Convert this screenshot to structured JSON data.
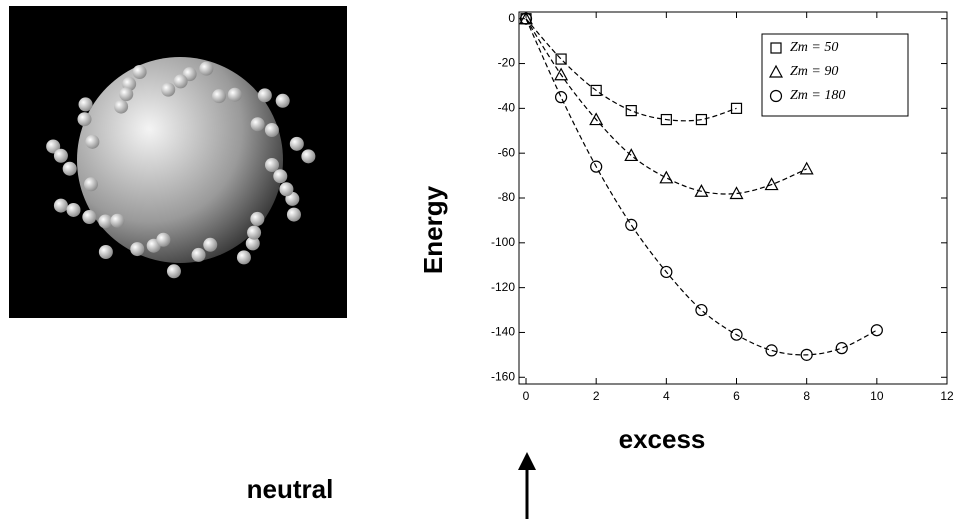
{
  "chart_data": {
    "type": "line",
    "x_label": "excess",
    "y_label": "Energy",
    "annotation": "neutral",
    "xlim": [
      -0.2,
      12
    ],
    "xticks": [
      0,
      2,
      4,
      6,
      8,
      10,
      12
    ],
    "ylim": [
      -163,
      3
    ],
    "yticks": [
      0,
      -20,
      -40,
      -60,
      -80,
      -100,
      -120,
      -140,
      -160
    ],
    "legend": "upper right",
    "series": [
      {
        "name": "Zm = 50",
        "marker": "square",
        "color": "#000000",
        "x": [
          0,
          1,
          2,
          3,
          4,
          5,
          6
        ],
        "values": [
          0,
          -18,
          -32,
          -41,
          -45,
          -45,
          -40
        ]
      },
      {
        "name": "Zm = 90",
        "marker": "triangle",
        "color": "#000000",
        "x": [
          0,
          1,
          2,
          3,
          4,
          5,
          6,
          7,
          8
        ],
        "values": [
          0,
          -25,
          -45,
          -61,
          -71,
          -77,
          -78,
          -74,
          -67
        ]
      },
      {
        "name": "Zm = 180",
        "marker": "circle",
        "color": "#000000",
        "x": [
          0,
          1,
          2,
          3,
          4,
          5,
          6,
          7,
          8,
          9,
          10
        ],
        "values": [
          0,
          -35,
          -66,
          -92,
          -113,
          -130,
          -141,
          -148,
          -150,
          -147,
          -139
        ]
      }
    ]
  }
}
